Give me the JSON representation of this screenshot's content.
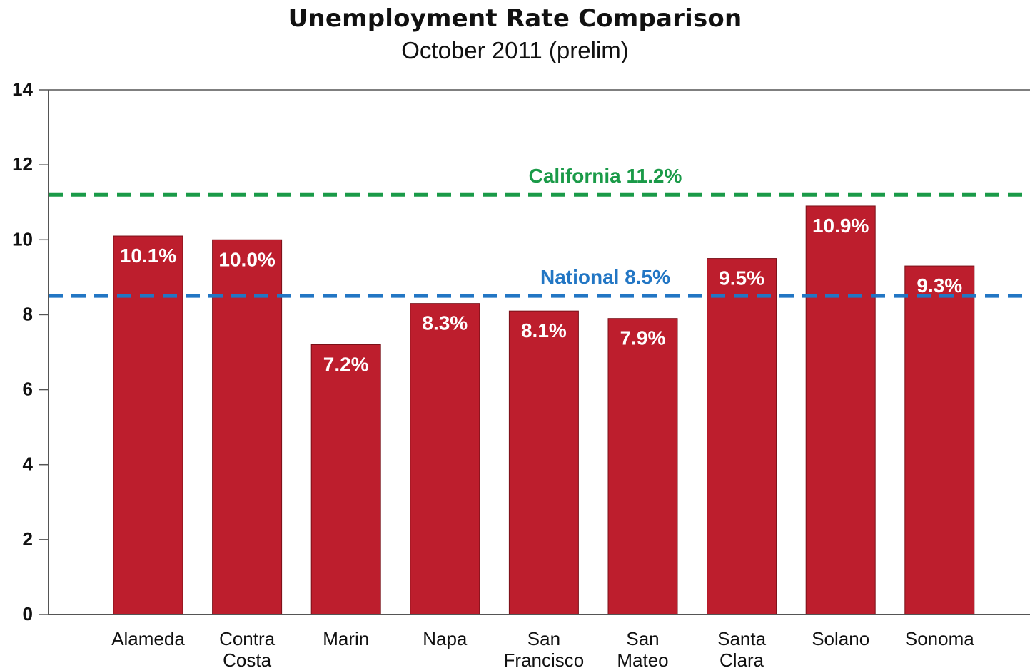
{
  "chart_data": {
    "type": "bar",
    "title": "Unemployment Rate Comparison",
    "subtitle": "October 2011 (prelim)",
    "categories": [
      [
        "Alameda"
      ],
      [
        "Contra",
        "Costa"
      ],
      [
        "Marin"
      ],
      [
        "Napa"
      ],
      [
        "San",
        "Francisco"
      ],
      [
        "San",
        "Mateo"
      ],
      [
        "Santa",
        "Clara"
      ],
      [
        "Solano"
      ],
      [
        "Sonoma"
      ]
    ],
    "values": [
      10.1,
      10.0,
      7.2,
      8.3,
      8.1,
      7.9,
      9.5,
      10.9,
      9.3
    ],
    "data_labels": [
      "10.1%",
      "10.0%",
      "7.2%",
      "8.3%",
      "8.1%",
      "7.9%",
      "9.5%",
      "10.9%",
      "9.3%"
    ],
    "ylim": [
      0,
      14
    ],
    "yticks": [
      0,
      2,
      4,
      6,
      8,
      10,
      12,
      14
    ],
    "xlabel": "",
    "ylabel": "",
    "grid": false,
    "bar_color": "#bd1e2d",
    "reference_lines": [
      {
        "label": "California 11.2%",
        "value": 11.2,
        "color": "#1a9a48",
        "style": "dashed"
      },
      {
        "label": "National 8.5%",
        "value": 8.5,
        "color": "#2276c4",
        "style": "dashed"
      }
    ]
  }
}
